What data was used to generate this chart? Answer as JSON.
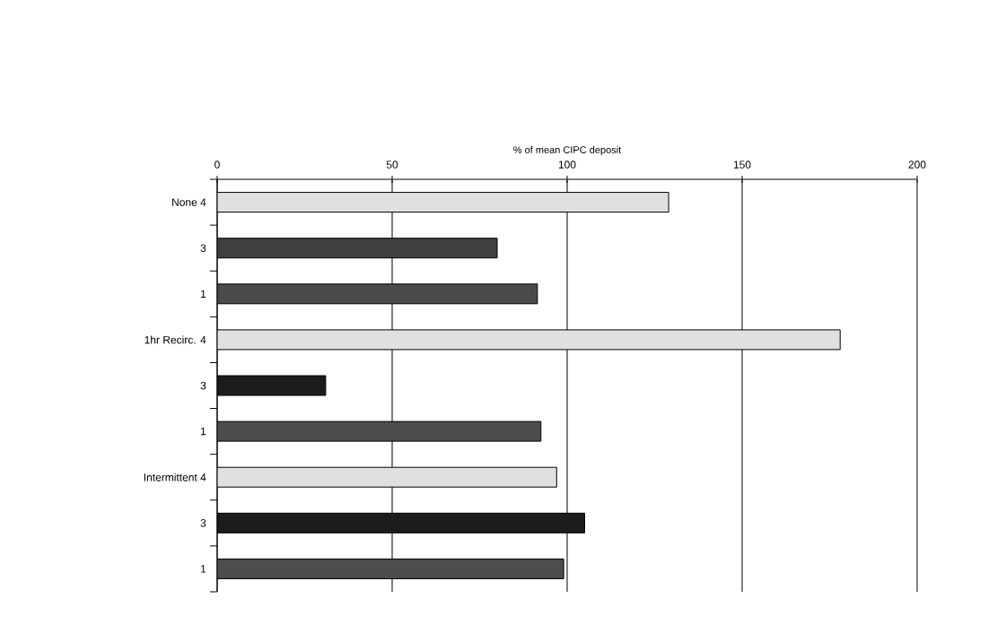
{
  "chart_data": {
    "type": "bar",
    "orientation": "horizontal",
    "xlabel": "% of mean CIPC deposit",
    "categories": [
      "None 4",
      "3",
      "1",
      "1hr Recirc. 4",
      "3",
      "1",
      "Intermittent 4",
      "3",
      "1"
    ],
    "values": [
      129,
      80,
      91.5,
      178,
      31,
      92.5,
      97,
      105,
      99
    ],
    "colors": [
      "#e0e0e0",
      "#404040",
      "#4a4a4a",
      "#e0e0e0",
      "#1c1c1c",
      "#4d4d4d",
      "#e0e0e0",
      "#1c1c1c",
      "#4d4d4d"
    ],
    "xlim": [
      0,
      200
    ],
    "xticks": [
      0,
      50,
      100,
      150,
      200
    ],
    "grid": "x"
  }
}
